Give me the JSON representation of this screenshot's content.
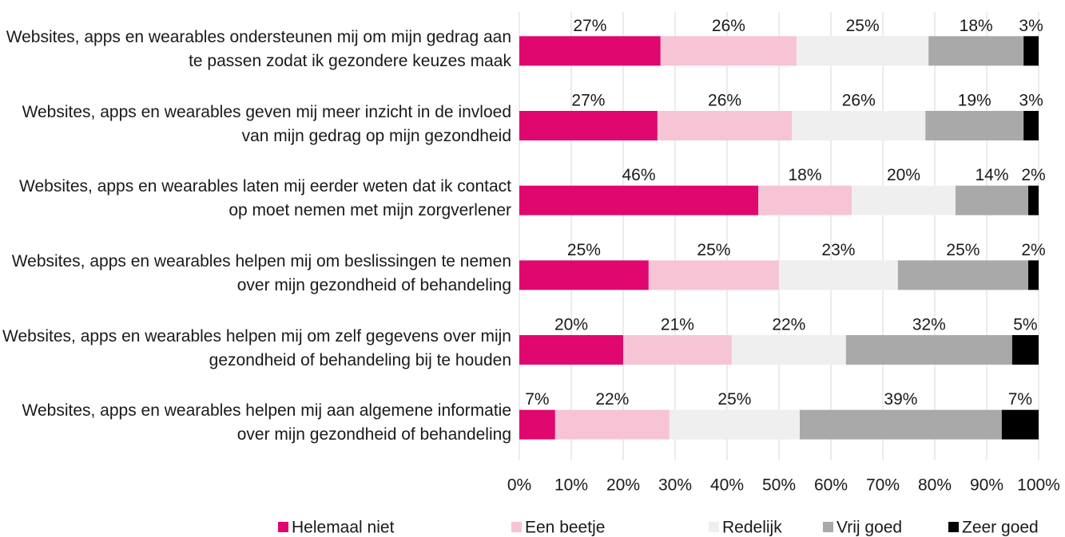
{
  "chart_data": {
    "type": "stacked_barh",
    "categories": [
      "Websites, apps en wearables ondersteunen mij om mijn gedrag aan te passen zodat ik gezondere keuzes maak",
      "Websites, apps en wearables geven mij meer inzicht in de invloed van mijn gedrag op mijn gezondheid",
      "Websites, apps en wearables laten mij eerder weten dat ik contact op moet nemen met mijn zorgverlener",
      "Websites, apps en wearables helpen mij om beslissingen te nemen over mijn gezondheid of behandeling",
      "Websites, apps en wearables helpen mij om zelf gegevens over mijn gezondheid of behandeling bij te houden",
      "Websites, apps en wearables helpen mij aan algemene informatie over mijn gezondheid of behandeling"
    ],
    "series": [
      {
        "name": "Helemaal niet",
        "color": "#e0076f",
        "values": [
          27.2,
          26.6,
          46.0,
          24.9,
          20.0,
          6.9
        ],
        "value_labels": [
          "27%",
          "27%",
          "46%",
          "25%",
          "20%",
          "7%"
        ]
      },
      {
        "name": "Een beetje",
        "color": "#f7c4d6",
        "values": [
          26.2,
          25.9,
          18.0,
          25.1,
          20.9,
          22.0
        ],
        "value_labels": [
          "26%",
          "26%",
          "18%",
          "25%",
          "21%",
          "22%"
        ]
      },
      {
        "name": "Redelijk",
        "color": "#efefef",
        "values": [
          25.4,
          25.7,
          20.0,
          22.9,
          22.0,
          25.1
        ],
        "value_labels": [
          "25%",
          "26%",
          "20%",
          "23%",
          "22%",
          "25%"
        ]
      },
      {
        "name": "Vrij goed",
        "color": "#a9a9a9",
        "values": [
          18.3,
          18.9,
          14.0,
          25.1,
          32.0,
          38.9
        ],
        "value_labels": [
          "18%",
          "19%",
          "14%",
          "25%",
          "32%",
          "39%"
        ]
      },
      {
        "name": "Zeer goed",
        "color": "#000000",
        "values": [
          2.9,
          2.9,
          2.0,
          2.0,
          5.1,
          7.1
        ],
        "value_labels": [
          "3%",
          "3%",
          "2%",
          "2%",
          "5%",
          "7%"
        ]
      }
    ],
    "xlim": [
      0,
      100
    ],
    "xticks": [
      {
        "value": 0,
        "label": "0%"
      },
      {
        "value": 10,
        "label": "10%"
      },
      {
        "value": 20,
        "label": "20%"
      },
      {
        "value": 30,
        "label": "30%"
      },
      {
        "value": 40,
        "label": "40%"
      },
      {
        "value": 50,
        "label": "50%"
      },
      {
        "value": 60,
        "label": "60%"
      },
      {
        "value": 70,
        "label": "70%"
      },
      {
        "value": 80,
        "label": "80%"
      },
      {
        "value": 90,
        "label": "90%"
      },
      {
        "value": 100,
        "label": "100%"
      }
    ],
    "grid": true,
    "legend": "bottom"
  }
}
